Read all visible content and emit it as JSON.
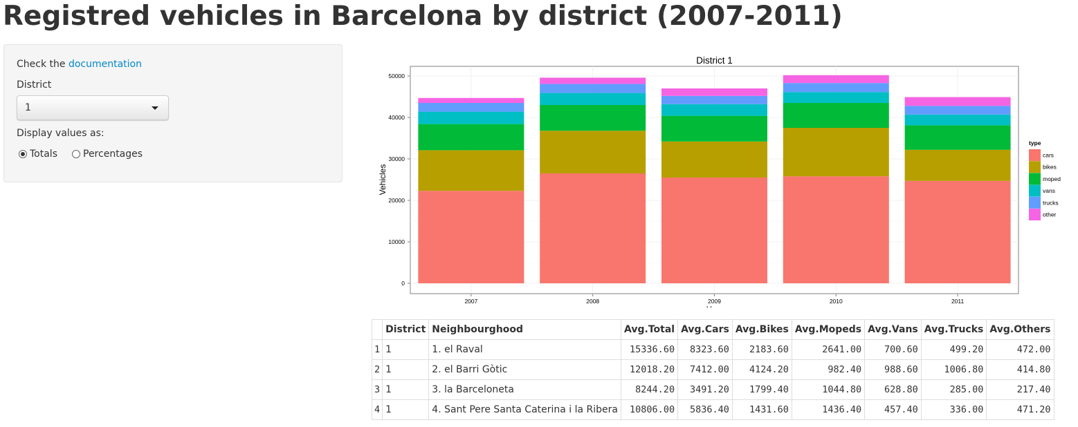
{
  "page": {
    "title": "Registred vehicles in Barcelona by district (2007-2011)"
  },
  "sidebar": {
    "doc_prefix": "Check the ",
    "doc_link": "documentation",
    "district_label": "District",
    "district_value": "1",
    "display_label": "Display values as:",
    "radio_totals": "Totals",
    "radio_percentages": "Percentages",
    "selected_display": "Totals"
  },
  "chart_data": {
    "type": "bar",
    "stacked": true,
    "title": "District  1",
    "xlabel": "Year",
    "ylabel": "Vehicles",
    "categories": [
      "2007",
      "2008",
      "2009",
      "2010",
      "2011"
    ],
    "ylim": [
      0,
      52000
    ],
    "yticks": [
      0,
      10000,
      20000,
      30000,
      40000,
      50000
    ],
    "grid": true,
    "legend": {
      "title": "type",
      "position": "right"
    },
    "series": [
      {
        "name": "cars",
        "color": "#F8766D",
        "values": [
          22300,
          26500,
          25500,
          25800,
          24700
        ]
      },
      {
        "name": "bikes",
        "color": "#B79F00",
        "values": [
          9800,
          10300,
          8700,
          11700,
          7500
        ]
      },
      {
        "name": "moped",
        "color": "#00BA38",
        "values": [
          6300,
          6200,
          6200,
          6000,
          5900
        ]
      },
      {
        "name": "vans",
        "color": "#00BFC4",
        "values": [
          3000,
          2900,
          2800,
          2600,
          2600
        ]
      },
      {
        "name": "trucks",
        "color": "#619CFF",
        "values": [
          2100,
          2200,
          2000,
          2200,
          2100
        ]
      },
      {
        "name": "other",
        "color": "#F564E3",
        "values": [
          1200,
          1500,
          1800,
          1900,
          2100
        ]
      }
    ]
  },
  "table": {
    "headers": [
      "",
      "District",
      "Neighbourghood",
      "Avg.Total",
      "Avg.Cars",
      "Avg.Bikes",
      "Avg.Mopeds",
      "Avg.Vans",
      "Avg.Trucks",
      "Avg.Others"
    ],
    "rows": [
      [
        "1",
        "1",
        "1. el Raval",
        "15336.60",
        "8323.60",
        "2183.60",
        "2641.00",
        "700.60",
        "499.20",
        "472.00"
      ],
      [
        "2",
        "1",
        "2. el Barri Gòtic",
        "12018.20",
        "7412.00",
        "4124.20",
        "982.40",
        "988.60",
        "1006.80",
        "414.80"
      ],
      [
        "3",
        "1",
        "3. la Barceloneta",
        "8244.20",
        "3491.20",
        "1799.40",
        "1044.80",
        "628.80",
        "285.00",
        "217.40"
      ],
      [
        "4",
        "1",
        "4. Sant Pere Santa Caterina i la Ribera",
        "10806.00",
        "5836.40",
        "1431.60",
        "1436.40",
        "457.40",
        "336.00",
        "471.20"
      ]
    ]
  }
}
